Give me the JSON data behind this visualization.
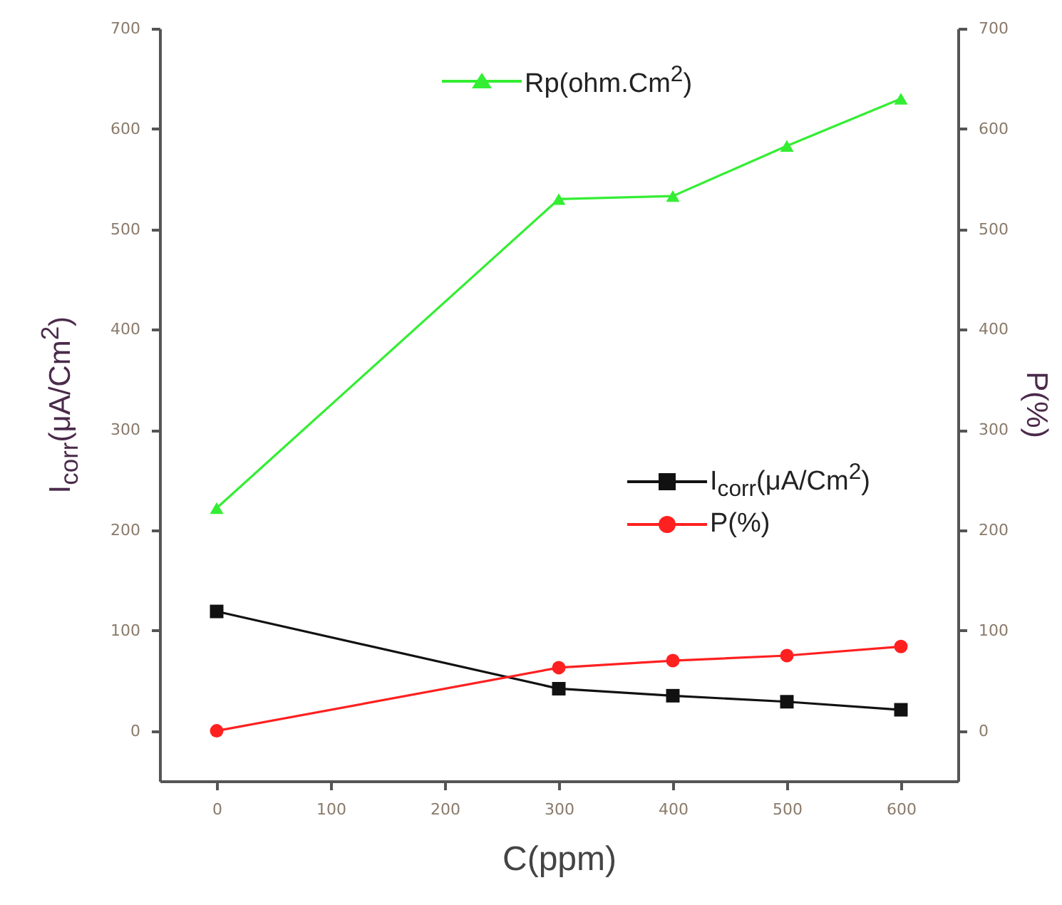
{
  "chart_data": {
    "type": "line",
    "xlabel": "C(ppm)",
    "ylabel": "I$_{corr}$(μA/Cm$^{2}$)",
    "y2label": "P(%)",
    "x": [
      0,
      300,
      400,
      500,
      600
    ],
    "xlim": [
      -50,
      650
    ],
    "xticks": [
      0,
      100,
      200,
      300,
      400,
      500,
      600
    ],
    "ylim": [
      -50,
      700
    ],
    "yticks": [
      0,
      100,
      200,
      300,
      400,
      500,
      600,
      700
    ],
    "y2lim": [
      -50,
      700
    ],
    "y2ticks": [
      0,
      100,
      200,
      300,
      400,
      500,
      600,
      700
    ],
    "grid": false,
    "legend": "right",
    "line_style": "solid",
    "series": [
      {
        "name": "Rp(ohm.Cm$^{2}$)",
        "color": "#33ee33",
        "marker": "triangle",
        "values": [
          222,
          530,
          533,
          583,
          630
        ]
      },
      {
        "name": "I$_{corr}$(μA/Cm$^{2}$)",
        "color": "#111111",
        "marker": "square",
        "values": [
          119,
          42,
          35,
          29,
          21
        ]
      },
      {
        "name": "P(%)",
        "color": "#ff2020",
        "marker": "circle",
        "axis": "y2",
        "values": [
          0,
          63,
          70,
          75,
          84
        ]
      }
    ]
  }
}
